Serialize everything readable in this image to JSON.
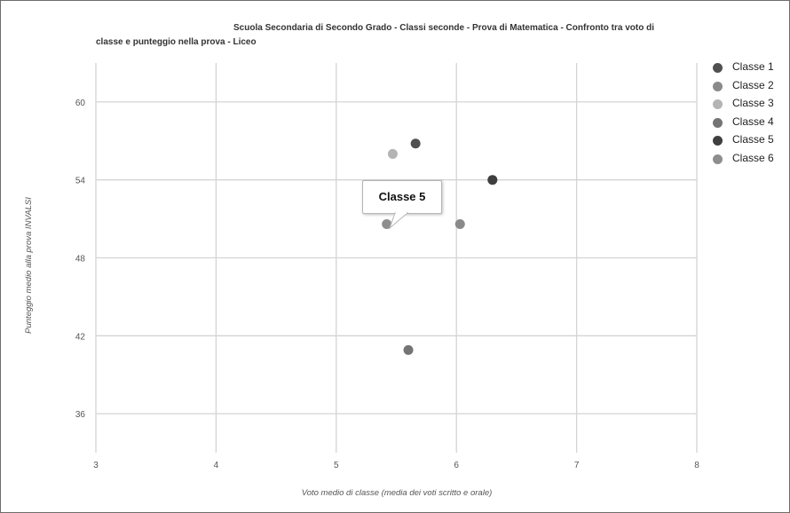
{
  "chart_data": {
    "type": "scatter",
    "title_line1": "Scuola Secondaria di Secondo Grado - Classi seconde - Prova di Matematica - Confronto tra voto di",
    "title_line2": "classe e punteggio nella prova - Liceo",
    "xlabel": "Voto medio di classe (media dei voti scritto e orale)",
    "ylabel": "Punteggio medio alla prova INVALSI",
    "xlim": [
      3,
      8
    ],
    "ylim": [
      33,
      63
    ],
    "x_ticks": [
      "3",
      "4",
      "5",
      "6",
      "7",
      "8"
    ],
    "y_ticks": [
      "36",
      "42",
      "48",
      "54",
      "60"
    ],
    "grid": true,
    "legend_position": "right",
    "series": [
      {
        "name": "Classe 1",
        "color": "#505050",
        "points": [
          {
            "x": 5.66,
            "y": 56.8
          }
        ]
      },
      {
        "name": "Classe 2",
        "color": "#8a8a8a",
        "points": [
          {
            "x": 6.03,
            "y": 50.6
          }
        ]
      },
      {
        "name": "Classe 3",
        "color": "#b4b4b4",
        "points": [
          {
            "x": 5.47,
            "y": 56.0
          }
        ]
      },
      {
        "name": "Classe 4",
        "color": "#747474",
        "points": [
          {
            "x": 5.6,
            "y": 40.9
          }
        ]
      },
      {
        "name": "Classe 5",
        "color": "#3f3f3f",
        "points": [
          {
            "x": 6.3,
            "y": 54.0
          }
        ]
      },
      {
        "name": "Classe 6",
        "color": "#8e8e8e",
        "points": [
          {
            "x": 5.42,
            "y": 50.6
          }
        ]
      }
    ],
    "tooltip": {
      "label": "Classe 5"
    }
  }
}
